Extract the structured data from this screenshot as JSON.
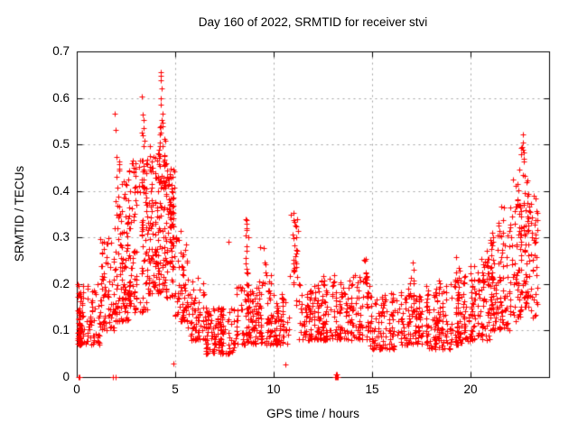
{
  "chart_data": {
    "type": "scatter",
    "title": "Day 160 of 2022, SRMTID for receiver stvi",
    "xlabel": "GPS time / hours",
    "ylabel": "SRMTID / TECUs",
    "xlim": [
      0,
      24
    ],
    "ylim": [
      0,
      0.7
    ],
    "xticks": [
      0,
      5,
      10,
      15,
      20
    ],
    "xtick_labels": [
      "0",
      "5",
      "10",
      "15",
      "20"
    ],
    "yticks": [
      0,
      0.1,
      0.2,
      0.3,
      0.4,
      0.5,
      0.6,
      0.7
    ],
    "ytick_labels": [
      "0",
      "0.1",
      "0.2",
      "0.3",
      "0.4",
      "0.5",
      "0.6",
      "0.7"
    ],
    "grid": "dashed",
    "legend": "none",
    "marker": "plus",
    "marker_size": 7,
    "marker_color": "#ff0000",
    "axis_color": "#000000",
    "grid_color": "#a0a0a0",
    "text_color": "#000000",
    "background": "#ffffff",
    "seed": 20220160,
    "density_segments": [
      {
        "t0": 0.0,
        "t1": 0.35,
        "n": 90,
        "y0": 0.07,
        "y1": 0.2,
        "k": 1.8
      },
      {
        "t0": 0.35,
        "t1": 1.2,
        "n": 55,
        "y0": 0.07,
        "y1": 0.2,
        "k": 1.5
      },
      {
        "t0": 1.2,
        "t1": 1.9,
        "n": 70,
        "y0": 0.1,
        "y1": 0.3,
        "k": 1.5
      },
      {
        "t0": 1.9,
        "t1": 2.6,
        "n": 110,
        "y0": 0.12,
        "y1": 0.42,
        "k": 1.5
      },
      {
        "t0": 2.6,
        "t1": 3.6,
        "n": 130,
        "y0": 0.14,
        "y1": 0.47,
        "k": 1.5
      },
      {
        "t0": 3.6,
        "t1": 4.3,
        "n": 120,
        "y0": 0.18,
        "y1": 0.5,
        "k": 1.4
      },
      {
        "t0": 4.3,
        "t1": 5.0,
        "n": 110,
        "y0": 0.17,
        "y1": 0.47,
        "k": 1.2
      },
      {
        "t0": 4.7,
        "t1": 4.85,
        "n": 12,
        "y0": 0.25,
        "y1": 0.45,
        "k": 1.0
      },
      {
        "t0": 5.0,
        "t1": 5.6,
        "n": 60,
        "y0": 0.12,
        "y1": 0.31,
        "k": 1.5
      },
      {
        "t0": 5.6,
        "t1": 6.5,
        "n": 70,
        "y0": 0.08,
        "y1": 0.22,
        "k": 1.6
      },
      {
        "t0": 6.5,
        "t1": 8.0,
        "n": 140,
        "y0": 0.05,
        "y1": 0.15,
        "k": 1.3
      },
      {
        "t0": 8.0,
        "t1": 9.0,
        "n": 90,
        "y0": 0.07,
        "y1": 0.2,
        "k": 1.6
      },
      {
        "t0": 8.5,
        "t1": 8.75,
        "n": 14,
        "y0": 0.2,
        "y1": 0.34,
        "k": 1.0
      },
      {
        "t0": 9.0,
        "t1": 10.0,
        "n": 90,
        "y0": 0.07,
        "y1": 0.22,
        "k": 1.6
      },
      {
        "t0": 9.45,
        "t1": 9.65,
        "n": 6,
        "y0": 0.2,
        "y1": 0.28,
        "k": 1.2
      },
      {
        "t0": 10.0,
        "t1": 10.8,
        "n": 70,
        "y0": 0.07,
        "y1": 0.18,
        "k": 1.5
      },
      {
        "t0": 10.85,
        "t1": 11.25,
        "n": 30,
        "y0": 0.15,
        "y1": 0.35,
        "k": 1.1
      },
      {
        "t0": 11.25,
        "t1": 12.3,
        "n": 90,
        "y0": 0.08,
        "y1": 0.2,
        "k": 1.6
      },
      {
        "t0": 12.3,
        "t1": 13.6,
        "n": 110,
        "y0": 0.08,
        "y1": 0.22,
        "k": 1.7
      },
      {
        "t0": 13.6,
        "t1": 14.9,
        "n": 100,
        "y0": 0.08,
        "y1": 0.22,
        "k": 1.6
      },
      {
        "t0": 14.55,
        "t1": 14.8,
        "n": 8,
        "y0": 0.18,
        "y1": 0.26,
        "k": 1.1
      },
      {
        "t0": 14.9,
        "t1": 16.2,
        "n": 100,
        "y0": 0.06,
        "y1": 0.18,
        "k": 1.5
      },
      {
        "t0": 16.2,
        "t1": 17.6,
        "n": 110,
        "y0": 0.07,
        "y1": 0.2,
        "k": 1.6
      },
      {
        "t0": 16.95,
        "t1": 17.2,
        "n": 6,
        "y0": 0.2,
        "y1": 0.27,
        "k": 1.1
      },
      {
        "t0": 17.6,
        "t1": 19.0,
        "n": 110,
        "y0": 0.06,
        "y1": 0.2,
        "k": 1.6
      },
      {
        "t0": 18.3,
        "t1": 18.5,
        "n": 5,
        "y0": 0.18,
        "y1": 0.24,
        "k": 1.1
      },
      {
        "t0": 19.0,
        "t1": 20.0,
        "n": 90,
        "y0": 0.07,
        "y1": 0.22,
        "k": 1.6
      },
      {
        "t0": 19.25,
        "t1": 19.5,
        "n": 6,
        "y0": 0.2,
        "y1": 0.27,
        "k": 1.1
      },
      {
        "t0": 20.0,
        "t1": 21.0,
        "n": 100,
        "y0": 0.08,
        "y1": 0.26,
        "k": 1.5
      },
      {
        "t0": 20.7,
        "t1": 20.95,
        "n": 6,
        "y0": 0.22,
        "y1": 0.3,
        "k": 1.1
      },
      {
        "t0": 21.0,
        "t1": 22.0,
        "n": 110,
        "y0": 0.1,
        "y1": 0.32,
        "k": 1.4
      },
      {
        "t0": 21.4,
        "t1": 21.7,
        "n": 8,
        "y0": 0.3,
        "y1": 0.38,
        "k": 1.2
      },
      {
        "t0": 22.0,
        "t1": 22.6,
        "n": 70,
        "y0": 0.12,
        "y1": 0.38,
        "k": 1.3
      },
      {
        "t0": 22.1,
        "t1": 22.5,
        "n": 8,
        "y0": 0.36,
        "y1": 0.45,
        "k": 1.2
      },
      {
        "t0": 22.6,
        "t1": 23.0,
        "n": 55,
        "y0": 0.15,
        "y1": 0.45,
        "k": 1.2
      },
      {
        "t0": 22.6,
        "t1": 22.78,
        "n": 6,
        "y0": 0.46,
        "y1": 0.52,
        "k": 1.1
      },
      {
        "t0": 23.0,
        "t1": 23.4,
        "n": 40,
        "y0": 0.12,
        "y1": 0.4,
        "k": 1.3
      },
      {
        "t0": 2.0,
        "t1": 2.15,
        "n": 6,
        "y0": 0.42,
        "y1": 0.5,
        "k": 1.1
      },
      {
        "t0": 3.25,
        "t1": 3.45,
        "n": 8,
        "y0": 0.45,
        "y1": 0.57,
        "k": 1.1
      },
      {
        "t0": 4.2,
        "t1": 4.4,
        "n": 10,
        "y0": 0.48,
        "y1": 0.6,
        "k": 1.2
      },
      {
        "t0": 4.45,
        "t1": 4.65,
        "n": 8,
        "y0": 0.4,
        "y1": 0.52,
        "k": 1.2
      }
    ],
    "outlier_points": [
      [
        4.25,
        0.655
      ],
      [
        4.28,
        0.648
      ],
      [
        4.26,
        0.637
      ],
      [
        4.3,
        0.62
      ],
      [
        3.32,
        0.603
      ],
      [
        4.27,
        0.6
      ],
      [
        4.29,
        0.585
      ],
      [
        1.93,
        0.567
      ],
      [
        3.36,
        0.565
      ],
      [
        4.33,
        0.552
      ],
      [
        1.96,
        0.532
      ],
      [
        3.3,
        0.525
      ],
      [
        22.65,
        0.522
      ],
      [
        22.66,
        0.505
      ],
      [
        22.63,
        0.494
      ],
      [
        22.7,
        0.47
      ],
      [
        11.0,
        0.352
      ],
      [
        8.6,
        0.34
      ],
      [
        5.3,
        0.315
      ],
      [
        7.7,
        0.29
      ],
      [
        9.3,
        0.28
      ],
      [
        4.9,
        0.03
      ],
      [
        10.6,
        0.027
      ]
    ],
    "zero_points": [
      [
        0.07,
        0
      ],
      [
        0.16,
        0
      ],
      [
        1.85,
        0
      ],
      [
        1.97,
        0
      ],
      [
        13.12,
        0
      ],
      [
        13.16,
        0
      ],
      [
        13.2,
        0
      ],
      [
        13.24,
        0
      ],
      [
        13.18,
        0.005
      ],
      [
        13.22,
        0.005
      ]
    ]
  }
}
